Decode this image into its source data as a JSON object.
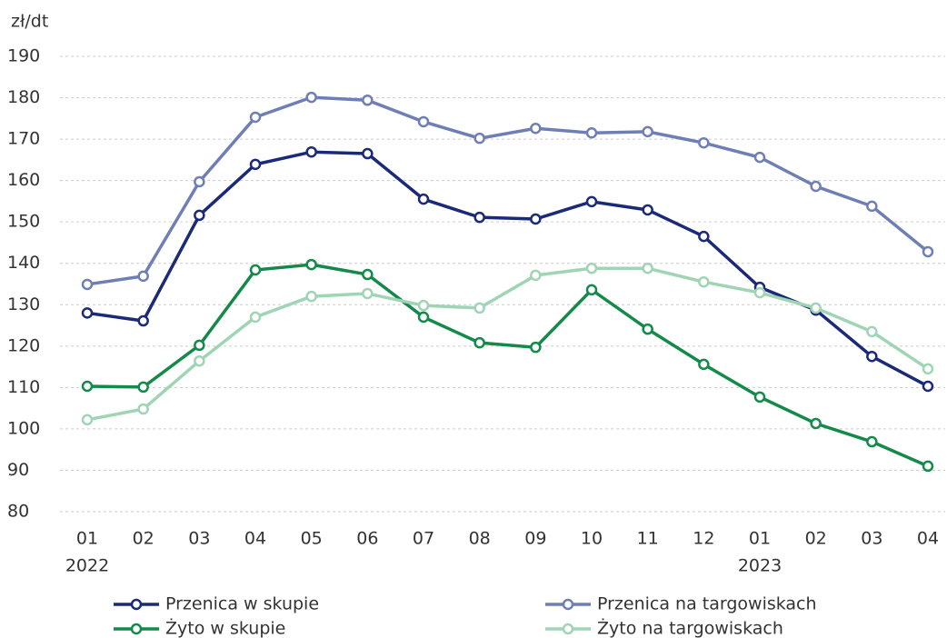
{
  "chart_data": {
    "type": "line",
    "y_label": "zł/dt",
    "categories": [
      "01",
      "02",
      "03",
      "04",
      "05",
      "06",
      "07",
      "08",
      "09",
      "10",
      "11",
      "12",
      "01",
      "02",
      "03",
      "04"
    ],
    "years": [
      "2022",
      null,
      null,
      null,
      null,
      null,
      null,
      null,
      null,
      null,
      null,
      null,
      "2023",
      null,
      null,
      null
    ],
    "series": [
      {
        "name": "Przenica w skupie",
        "color": "#1b2a78",
        "values": [
          128,
          126.1,
          151.6,
          163.9,
          166.9,
          166.5,
          155.5,
          151.1,
          150.7,
          154.9,
          152.9,
          146.5,
          134.2,
          128.7,
          117.5,
          110.3
        ]
      },
      {
        "name": "Przenica na targowiskach",
        "color": "#6f7fb5",
        "values": [
          134.9,
          136.9,
          159.7,
          175.3,
          180.1,
          179.4,
          174.2,
          170.2,
          172.6,
          171.5,
          171.8,
          169.1,
          165.6,
          158.6,
          153.8,
          142.8
        ]
      },
      {
        "name": "Żyto w skupie",
        "color": "#138a4a",
        "values": [
          110.3,
          110.1,
          120.2,
          138.4,
          139.7,
          137.3,
          127,
          120.8,
          119.7,
          133.6,
          124.1,
          115.6,
          107.7,
          101.3,
          96.9,
          91
        ]
      },
      {
        "name": "Żyto na targowiskach",
        "color": "#9fd4b4",
        "values": [
          102.2,
          104.8,
          116.4,
          127,
          132,
          132.7,
          129.8,
          129.2,
          137.1,
          138.8,
          138.8,
          135.5,
          132.9,
          129.2,
          123.5,
          114.5
        ]
      }
    ],
    "ylim": [
      80,
      190
    ],
    "yticks": [
      80,
      90,
      100,
      110,
      120,
      130,
      140,
      150,
      160,
      170,
      180,
      190
    ],
    "grid": true,
    "legend": "bottom"
  }
}
